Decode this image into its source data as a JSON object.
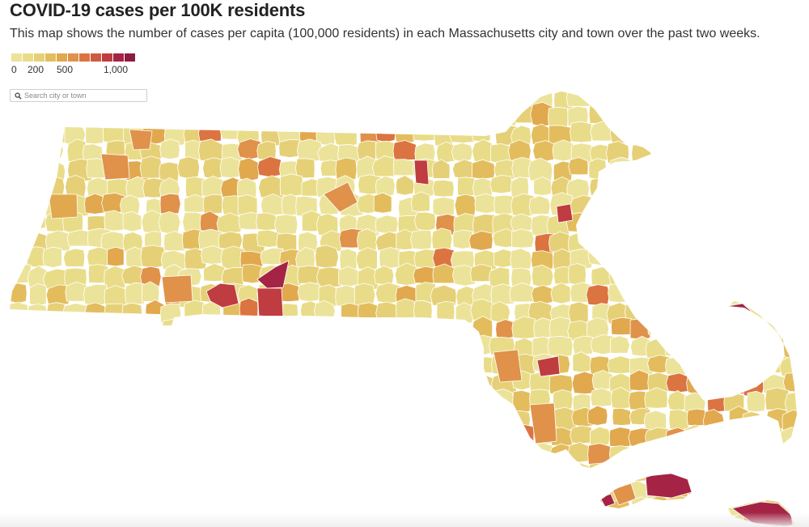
{
  "title": "COVID-19 cases per 100K residents",
  "subtitle": "This map shows the number of cases per capita (100,000 residents) in each Massachusetts city and town over the past two weeks.",
  "legend": {
    "colors": [
      "#ece39a",
      "#e9dc88",
      "#e6d077",
      "#e3bd5d",
      "#e1a84e",
      "#e0914a",
      "#db7441",
      "#cf5a3e",
      "#bf3c40",
      "#a52345",
      "#8e1a43"
    ],
    "labels": [
      "0",
      "200",
      "500",
      "1,000"
    ]
  },
  "search": {
    "placeholder": "Search city or town",
    "icon": "search-icon"
  },
  "colors": {
    "stroke": "#ffffff",
    "water": "#ffffff"
  }
}
